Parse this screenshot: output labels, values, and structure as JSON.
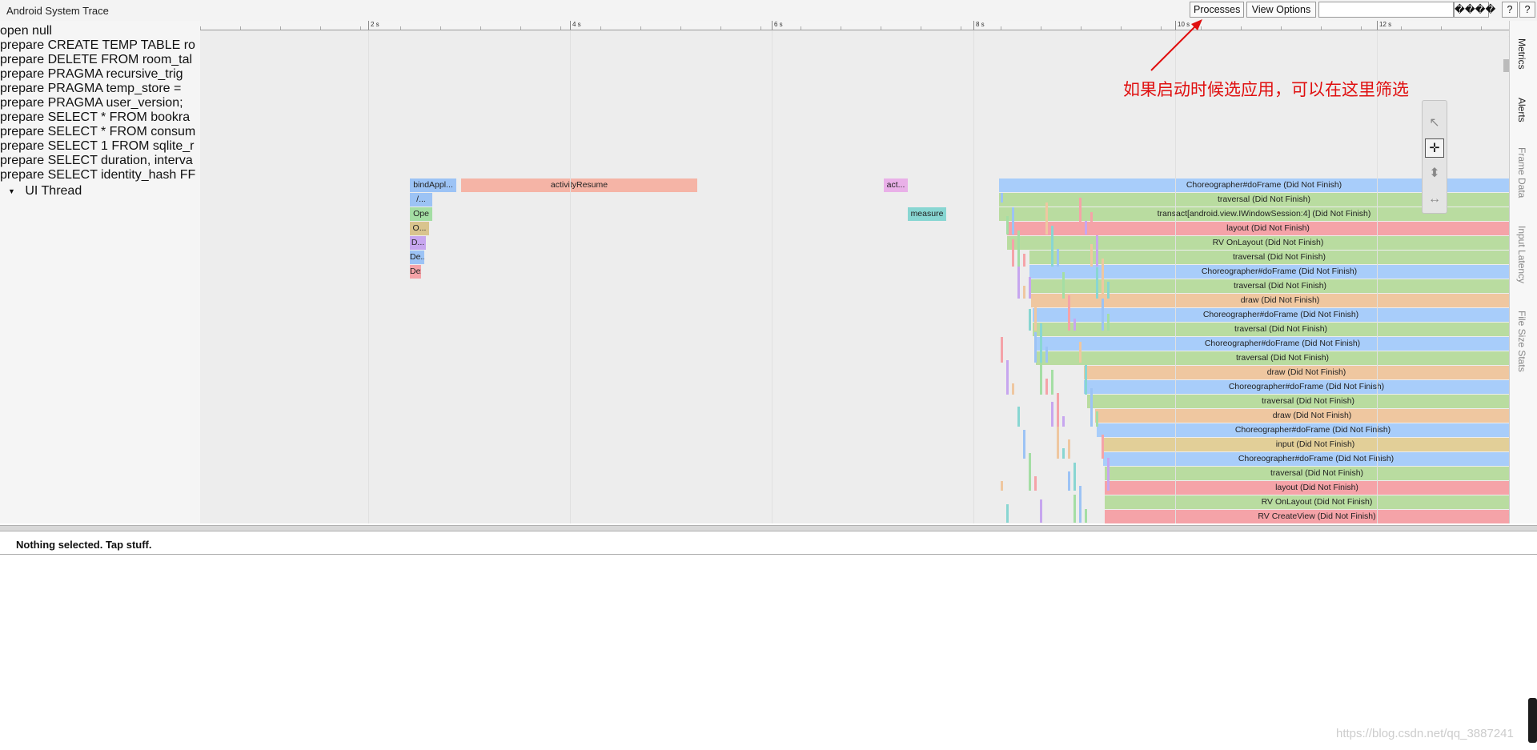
{
  "app": {
    "title": "Android System Trace"
  },
  "toolbar": {
    "processes_label": "Processes",
    "view_options_label": "View Options",
    "search_placeholder": "",
    "garbled_label": "����",
    "help1_label": "?",
    "help2_label": "?"
  },
  "sidebar": {
    "rows": [
      "open null",
      "prepare CREATE TEMP TABLE ro",
      "prepare DELETE FROM room_tal",
      "prepare PRAGMA recursive_trig",
      "prepare PRAGMA temp_store =",
      "prepare PRAGMA user_version;",
      "prepare SELECT * FROM bookra",
      "prepare SELECT * FROM consum",
      "prepare SELECT 1 FROM sqlite_r",
      "prepare SELECT duration, interva",
      "prepare SELECT identity_hash FF"
    ],
    "thread": {
      "toggle": "▼",
      "label": "UI Thread"
    }
  },
  "ruler": {
    "labels": [
      "2 s",
      "4 s",
      "6 s",
      "8 s",
      "10 s",
      "12 s"
    ]
  },
  "slices": [
    {
      "label": "bindAppl...",
      "color": "#9cc3f5"
    },
    {
      "label": "activityResume",
      "color": "#f5b4a6"
    },
    {
      "label": "act...",
      "color": "#e9b0e8"
    },
    {
      "label": "Choreographer#doFrame (Did Not Finish)",
      "color": "#a8cdfa"
    },
    {
      "label": "/...",
      "color": "#9cc3f5"
    },
    {
      "label": "traversal (Did Not Finish)",
      "color": "#b9dca0"
    },
    {
      "label": "Ope",
      "color": "#a4dea4"
    },
    {
      "label": "measure",
      "color": "#88d6d2"
    },
    {
      "label": "transact[android.view.IWindowSession:4] (Did Not Finish)",
      "color": "#b9dca0"
    },
    {
      "label": "O...",
      "color": "#d9c48e"
    },
    {
      "label": "layout (Did Not Finish)",
      "color": "#f5a3a8"
    },
    {
      "label": "D...",
      "color": "#c7a6ef"
    },
    {
      "label": "RV OnLayout (Did Not Finish)",
      "color": "#b9dca0"
    },
    {
      "label": "De...",
      "color": "#9cc3f5"
    },
    {
      "label": "traversal (Did Not Finish)",
      "color": "#b9dca0"
    },
    {
      "label": "Dex",
      "color": "#f5a3a8"
    },
    {
      "label": "Choreographer#doFrame (Did Not Finish)",
      "color": "#a8cdfa"
    },
    {
      "label": "traversal (Did Not Finish)",
      "color": "#b9dca0"
    },
    {
      "label": "draw (Did Not Finish)",
      "color": "#efc7a0"
    },
    {
      "label": "Choreographer#doFrame (Did Not Finish)",
      "color": "#a8cdfa"
    },
    {
      "label": "traversal (Did Not Finish)",
      "color": "#b9dca0"
    },
    {
      "label": "Choreographer#doFrame (Did Not Finish)",
      "color": "#a8cdfa"
    },
    {
      "label": "traversal (Did Not Finish)",
      "color": "#b9dca0"
    },
    {
      "label": "draw (Did Not Finish)",
      "color": "#efc7a0"
    },
    {
      "label": "Choreographer#doFrame (Did Not Finish)",
      "color": "#a8cdfa"
    },
    {
      "label": "traversal (Did Not Finish)",
      "color": "#b9dca0"
    },
    {
      "label": "draw (Did Not Finish)",
      "color": "#efc7a0"
    },
    {
      "label": "Choreographer#doFrame (Did Not Finish)",
      "color": "#a8cdfa"
    },
    {
      "label": "input (Did Not Finish)",
      "color": "#e2cf98"
    },
    {
      "label": "Choreographer#doFrame (Did Not Finish)",
      "color": "#a8cdfa"
    },
    {
      "label": "traversal (Did Not Finish)",
      "color": "#b9dca0"
    },
    {
      "label": "layout (Did Not Finish)",
      "color": "#f5a3a8"
    },
    {
      "label": "RV OnLayout (Did Not Finish)",
      "color": "#b9dca0"
    },
    {
      "label": "RV CreateView (Did Not Finish)",
      "color": "#f5a3a8"
    }
  ],
  "side_tabs": [
    "Metrics",
    "Alerts",
    "Frame Data",
    "Input Latency",
    "File Size Stats"
  ],
  "tools": [
    {
      "name": "select-tool-icon",
      "glyph": "↖"
    },
    {
      "name": "pan-tool-icon",
      "glyph": "✛"
    },
    {
      "name": "zoom-tool-icon",
      "glyph": "⬍"
    },
    {
      "name": "timing-tool-icon",
      "glyph": "↔"
    }
  ],
  "annotation": {
    "text": "如果启动时候选应用，可以在这里筛选",
    "color": "#e01010"
  },
  "details": {
    "text": "Nothing selected. Tap stuff."
  },
  "watermark": "https://blog.csdn.net/qq_3887241"
}
